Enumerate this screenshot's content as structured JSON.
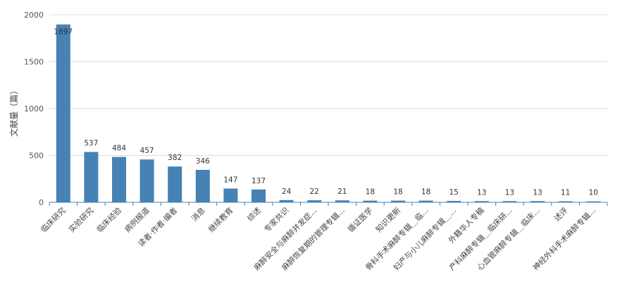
{
  "chart_data": {
    "type": "bar",
    "ylabel": "文献量（篇）",
    "ylim": [
      0,
      2000
    ],
    "yticks": [
      0,
      500,
      1000,
      1500,
      2000
    ],
    "grid": true,
    "bar_color": "#4682b4",
    "categories": [
      "临床研究",
      "实验研究",
      "临床经验",
      "病例报道",
      "读者·作者·编者",
      "消息",
      "继续教育",
      "综述",
      "专家共识",
      "麻醉安全与麻醉并发症...",
      "麻醉恢复期的管理专辑...",
      "循证医学",
      "知识更新",
      "骨科手术麻醉专辑＿临...",
      "妇产与小儿麻醉专辑＿...",
      "外籍华人专稿",
      "产科麻醉专辑＿临床研...",
      "心血管麻醉专辑＿临床...",
      "述评",
      "神经外科手术麻醉专辑..."
    ],
    "values": [
      1897,
      537,
      484,
      457,
      382,
      346,
      147,
      137,
      24,
      22,
      21,
      18,
      18,
      18,
      15,
      13,
      13,
      13,
      11,
      10
    ]
  }
}
